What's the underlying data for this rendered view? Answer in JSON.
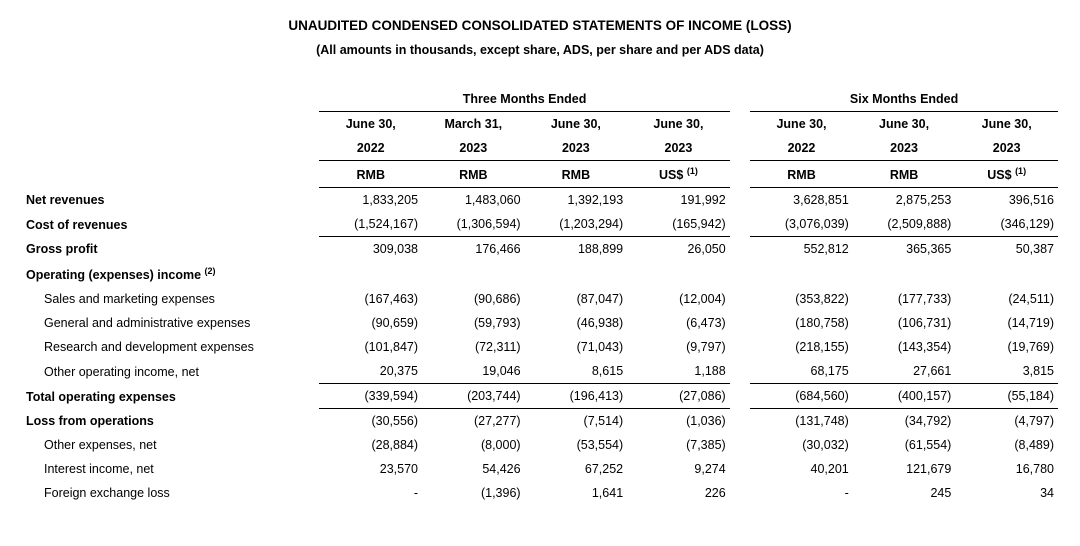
{
  "title": "UNAUDITED CONDENSED CONSOLIDATED STATEMENTS OF INCOME (LOSS)",
  "subtitle": "(All amounts in thousands, except share, ADS, per share and per ADS data)",
  "header": {
    "period3": "Three Months Ended",
    "period6": "Six Months Ended",
    "cols": [
      {
        "date": "June 30,",
        "year": "2022",
        "curr": "RMB"
      },
      {
        "date": "March 31,",
        "year": "2023",
        "curr": "RMB"
      },
      {
        "date": "June 30,",
        "year": "2023",
        "curr": "RMB"
      },
      {
        "date": "June 30,",
        "year": "2023",
        "curr": "US$",
        "note": "(1)"
      },
      {
        "date": "June 30,",
        "year": "2022",
        "curr": "RMB"
      },
      {
        "date": "June 30,",
        "year": "2023",
        "curr": "RMB"
      },
      {
        "date": "June 30,",
        "year": "2023",
        "curr": "US$",
        "note": "(1)"
      }
    ]
  },
  "rows": [
    {
      "label": "Net revenues",
      "bold": true,
      "v": [
        "1,833,205",
        "1,483,060",
        "1,392,193",
        "191,992",
        "3,628,851",
        "2,875,253",
        "396,516"
      ]
    },
    {
      "label": "Cost of revenues",
      "bold": true,
      "border": true,
      "v": [
        "(1,524,167)",
        "(1,306,594)",
        "(1,203,294)",
        "(165,942)",
        "(3,076,039)",
        "(2,509,888)",
        "(346,129)"
      ]
    },
    {
      "label": "Gross profit",
      "bold": true,
      "v": [
        "309,038",
        "176,466",
        "188,899",
        "26,050",
        "552,812",
        "365,365",
        "50,387"
      ]
    },
    {
      "label": "Operating (expenses) income",
      "bold": true,
      "sup": "(2)",
      "v": [
        "",
        "",
        "",
        "",
        "",
        "",
        ""
      ]
    },
    {
      "label": "Sales and marketing expenses",
      "indent": true,
      "v": [
        "(167,463)",
        "(90,686)",
        "(87,047)",
        "(12,004)",
        "(353,822)",
        "(177,733)",
        "(24,511)"
      ]
    },
    {
      "label": "General and administrative expenses",
      "indent": true,
      "v": [
        "(90,659)",
        "(59,793)",
        "(46,938)",
        "(6,473)",
        "(180,758)",
        "(106,731)",
        "(14,719)"
      ]
    },
    {
      "label": "Research and development expenses",
      "indent": true,
      "v": [
        "(101,847)",
        "(72,311)",
        "(71,043)",
        "(9,797)",
        "(218,155)",
        "(143,354)",
        "(19,769)"
      ]
    },
    {
      "label": "Other operating income, net",
      "indent": true,
      "border": true,
      "v": [
        "20,375",
        "19,046",
        "8,615",
        "1,188",
        "68,175",
        "27,661",
        "3,815"
      ]
    },
    {
      "label": "Total operating expenses",
      "bold": true,
      "border": true,
      "v": [
        "(339,594)",
        "(203,744)",
        "(196,413)",
        "(27,086)",
        "(684,560)",
        "(400,157)",
        "(55,184)"
      ]
    },
    {
      "label": "Loss from operations",
      "bold": true,
      "v": [
        "(30,556)",
        "(27,277)",
        "(7,514)",
        "(1,036)",
        "(131,748)",
        "(34,792)",
        "(4,797)"
      ]
    },
    {
      "label": "Other expenses, net",
      "indent": true,
      "v": [
        "(28,884)",
        "(8,000)",
        "(53,554)",
        "(7,385)",
        "(30,032)",
        "(61,554)",
        "(8,489)"
      ]
    },
    {
      "label": "Interest income, net",
      "indent": true,
      "v": [
        "23,570",
        "54,426",
        "67,252",
        "9,274",
        "40,201",
        "121,679",
        "16,780"
      ]
    },
    {
      "label": "Foreign exchange loss",
      "indent": true,
      "v": [
        "-",
        "(1,396)",
        "1,641",
        "226",
        "-",
        "245",
        "34"
      ]
    }
  ]
}
